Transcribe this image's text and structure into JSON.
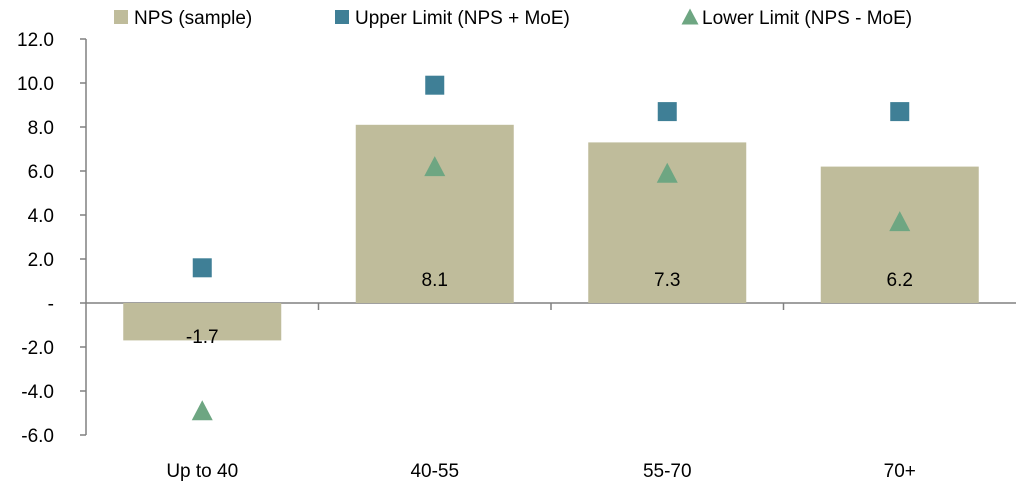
{
  "chart_data": {
    "type": "bar",
    "categories": [
      "Up to 40",
      "40-55",
      "55-70",
      "70+"
    ],
    "series": [
      {
        "name": "NPS (sample)",
        "kind": "bar",
        "values": [
          -1.7,
          8.1,
          7.3,
          6.2
        ],
        "color": "#bfbc9b",
        "marker": "square"
      },
      {
        "name": "Upper Limit (NPS + MoE)",
        "kind": "point",
        "values": [
          1.6,
          9.9,
          8.7,
          8.7
        ],
        "color": "#3f7f96",
        "marker": "square"
      },
      {
        "name": "Lower Limit (NPS - MoE)",
        "kind": "point",
        "values": [
          -4.9,
          6.2,
          5.9,
          3.7
        ],
        "color": "#6ea682",
        "marker": "triangle"
      }
    ],
    "data_labels": [
      "-1.7",
      "8.1",
      "7.3",
      "6.2"
    ],
    "y_ticks": [
      "12.0",
      "10.0",
      "8.0",
      "6.0",
      "4.0",
      "2.0",
      "-",
      "-2.0",
      "-4.0",
      "-6.0"
    ],
    "ylim": [
      -6,
      12
    ],
    "legend_position": "top",
    "grid": false
  }
}
